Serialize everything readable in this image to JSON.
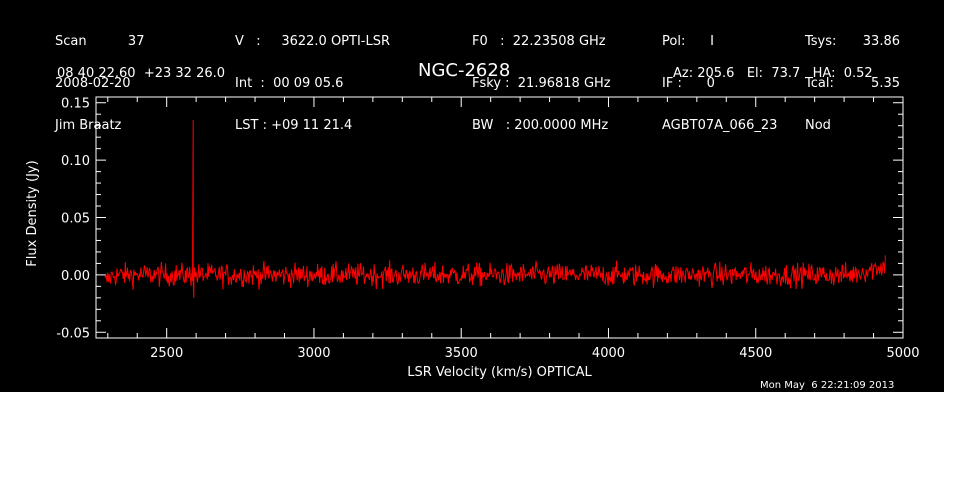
{
  "header": {
    "col1": [
      "Scan          37",
      "2008-02-20",
      "Jim Braatz"
    ],
    "col2": [
      "V   :     3622.0 OPTI-LSR",
      "Int  :  00 09 05.6",
      "LST : +09 11 21.4"
    ],
    "col3": [
      "F0   :  22.23508 GHz",
      "Fsky :  21.96818 GHz",
      "BW   : 200.0000 MHz"
    ],
    "col4": [
      "Pol:      I",
      "IF :      0",
      "AGBT07A_066_23"
    ],
    "col5a": [
      "Tsys:",
      "Tcal:",
      "Nod"
    ],
    "col5b": [
      "33.86",
      "5.35",
      ""
    ]
  },
  "coords": "08 40 22.60  +23 32 26.0",
  "source": "NGC-2628",
  "pointing": "Az: 205.6   El:  73.7   HA:  0.52",
  "timestamp": "Mon May  6 22:21:09 2013",
  "chart_data": {
    "type": "line",
    "xlabel": "LSR Velocity (km/s) OPTICAL",
    "ylabel": "Flux Density (Jy)",
    "xlim": [
      2260,
      5000
    ],
    "ylim": [
      -0.055,
      0.155
    ],
    "xticks": [
      2500,
      3000,
      3500,
      4000,
      4500,
      5000
    ],
    "yticks": [
      -0.05,
      0.0,
      0.05,
      0.1,
      0.15
    ],
    "ytick_labels": [
      "-0.05",
      "0.00",
      "0.05",
      "0.10",
      "0.15"
    ],
    "series": [
      {
        "color": "#ff0000",
        "x_start": 2290,
        "x_end": 4940,
        "noise_rms": 0.005,
        "peaks": [
          {
            "x": 2590,
            "y": 0.135
          },
          {
            "x": 2592,
            "y": -0.02
          }
        ],
        "edge_rise": {
          "x": 4940,
          "y": 0.017
        }
      }
    ]
  }
}
